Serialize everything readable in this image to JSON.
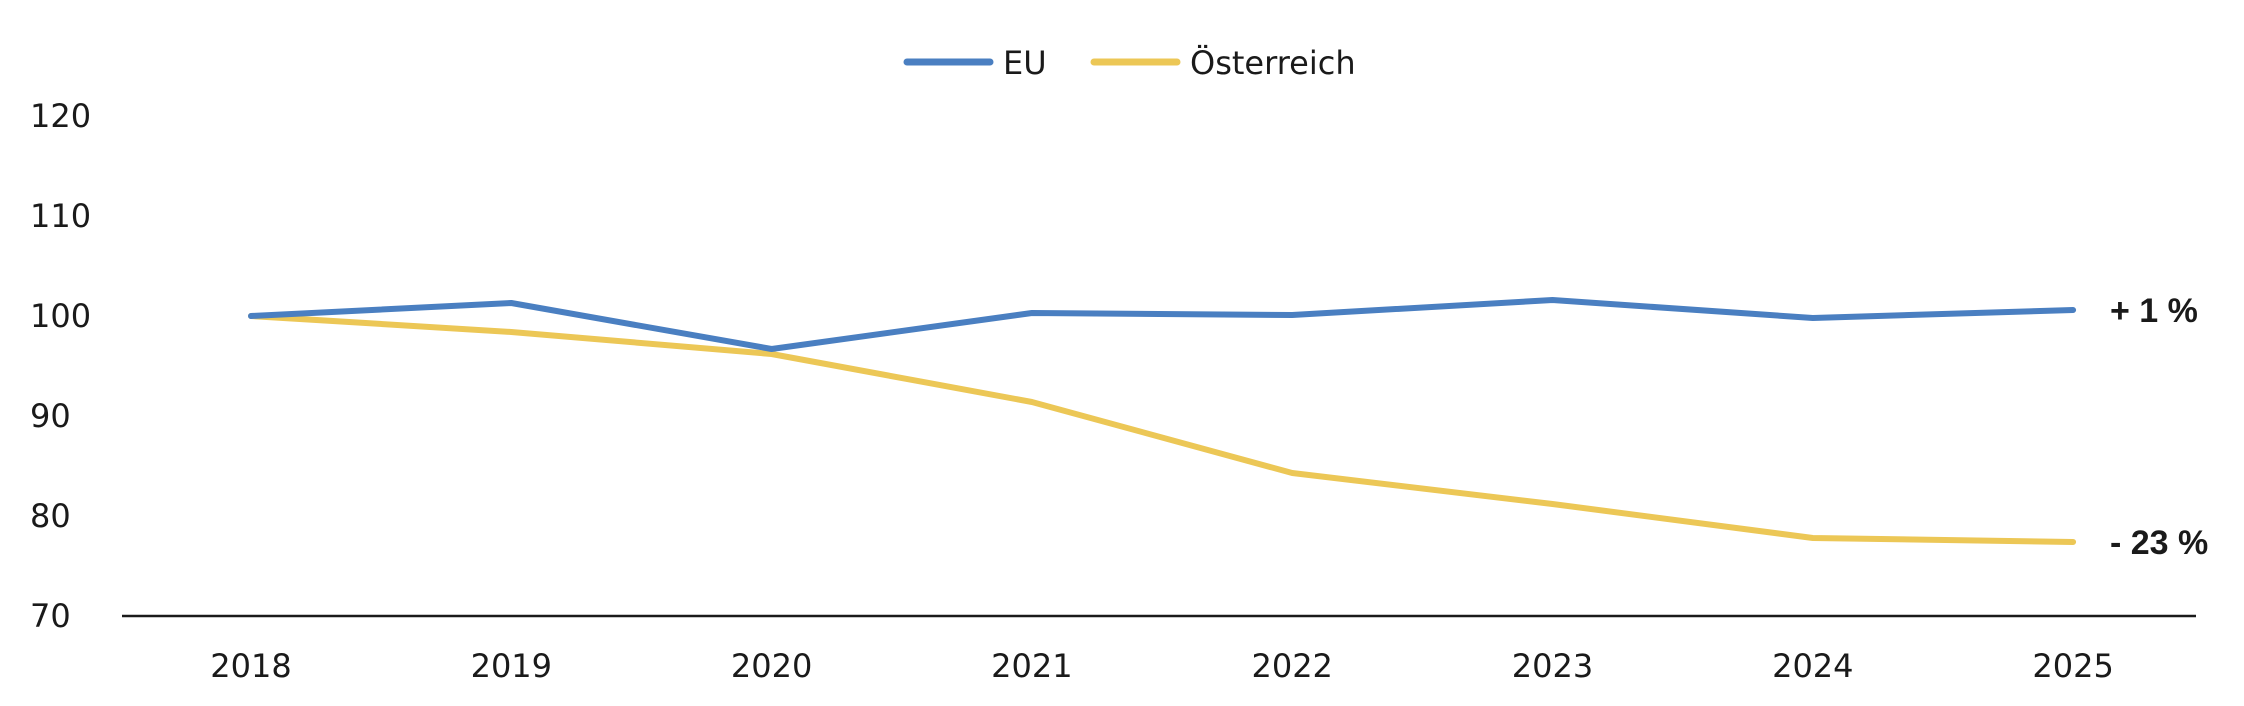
{
  "chart_data": {
    "type": "line",
    "title": "",
    "xlabel": "",
    "ylabel": "",
    "x": [
      "2018",
      "2019",
      "2020",
      "2021",
      "2022",
      "2023",
      "2024",
      "2025"
    ],
    "ylim": [
      70,
      120
    ],
    "yticks": [
      "70",
      "80",
      "90",
      "100",
      "110",
      "120"
    ],
    "grid": false,
    "legend_position": "top-center",
    "series": [
      {
        "name": "EU",
        "color": "#4a7fc1",
        "values": [
          100,
          101.3,
          96.7,
          100.3,
          100.1,
          101.6,
          99.8,
          100.6
        ],
        "end_label": "+ 1 %"
      },
      {
        "name": "Österreich",
        "color": "#ecc756",
        "values": [
          100,
          98.4,
          96.2,
          91.4,
          84.3,
          81.2,
          77.8,
          77.4
        ],
        "end_label": "- 23 %"
      }
    ]
  }
}
